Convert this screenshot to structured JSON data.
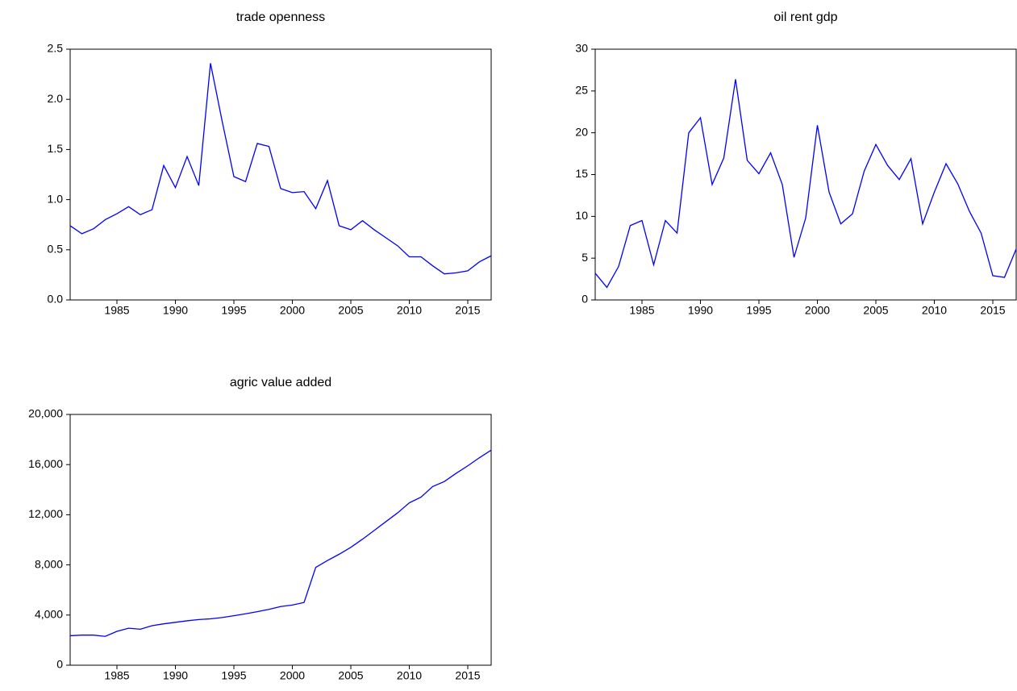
{
  "chart_data": [
    {
      "type": "line",
      "title": "trade openness",
      "color": "#0000ff",
      "x": [
        1981,
        1982,
        1983,
        1984,
        1985,
        1986,
        1987,
        1988,
        1989,
        1990,
        1991,
        1992,
        1993,
        1994,
        1995,
        1996,
        1997,
        1998,
        1999,
        2000,
        2001,
        2002,
        2003,
        2004,
        2005,
        2006,
        2007,
        2008,
        2009,
        2010,
        2011,
        2012,
        2013,
        2014,
        2015,
        2016,
        2017
      ],
      "values": [
        0.74,
        0.66,
        0.71,
        0.8,
        0.86,
        0.93,
        0.85,
        0.9,
        1.34,
        1.12,
        1.43,
        1.14,
        2.36,
        1.78,
        1.23,
        1.18,
        1.56,
        1.53,
        1.11,
        1.07,
        1.08,
        0.91,
        1.19,
        0.74,
        0.7,
        0.79,
        0.7,
        0.62,
        0.54,
        0.43,
        0.43,
        0.34,
        0.26,
        0.27,
        0.29,
        0.38,
        0.44
      ],
      "xlim": [
        1981,
        2017
      ],
      "xticks": [
        1985,
        1990,
        1995,
        2000,
        2005,
        2010,
        2015
      ],
      "ylim": [
        0,
        2.5
      ],
      "yticks": [
        {
          "value": 0,
          "label": "0.0"
        },
        0.5,
        {
          "value": 1,
          "label": "1.0"
        },
        1.5,
        {
          "value": 2,
          "label": "2.0"
        },
        2.5
      ]
    },
    {
      "type": "line",
      "title": "oil rent gdp",
      "color": "#0000ff",
      "x": [
        1981,
        1982,
        1983,
        1984,
        1985,
        1986,
        1987,
        1988,
        1989,
        1990,
        1991,
        1992,
        1993,
        1994,
        1995,
        1996,
        1997,
        1998,
        1999,
        2000,
        2001,
        2002,
        2003,
        2004,
        2005,
        2006,
        2007,
        2008,
        2009,
        2010,
        2011,
        2012,
        2013,
        2014,
        2015,
        2016,
        2017
      ],
      "values": [
        3.2,
        1.5,
        4.0,
        8.9,
        9.5,
        4.2,
        9.5,
        8.0,
        20.0,
        21.8,
        13.8,
        17.0,
        26.4,
        16.7,
        15.1,
        17.6,
        13.8,
        5.1,
        9.8,
        20.9,
        12.9,
        9.1,
        10.3,
        15.4,
        18.6,
        16.1,
        14.4,
        16.9,
        9.1,
        12.9,
        16.3,
        13.9,
        10.6,
        8.0,
        2.9,
        2.7,
        6.1
      ],
      "xlim": [
        1981,
        2017
      ],
      "xticks": [
        1985,
        1990,
        1995,
        2000,
        2005,
        2010,
        2015
      ],
      "ylim": [
        0,
        30
      ],
      "yticks": [
        0,
        5,
        10,
        15,
        20,
        25,
        30
      ]
    },
    {
      "type": "line",
      "title": "agric value added",
      "color": "#0000ff",
      "x": [
        1981,
        1982,
        1983,
        1984,
        1985,
        1986,
        1987,
        1988,
        1989,
        1990,
        1991,
        1992,
        1993,
        1994,
        1995,
        1996,
        1997,
        1998,
        1999,
        2000,
        2001,
        2002,
        2003,
        2004,
        2005,
        2006,
        2007,
        2008,
        2009,
        2010,
        2011,
        2012,
        2013,
        2014,
        2015,
        2016,
        2017
      ],
      "values": [
        2350,
        2400,
        2400,
        2300,
        2700,
        2950,
        2870,
        3150,
        3300,
        3420,
        3540,
        3640,
        3700,
        3800,
        3950,
        4100,
        4270,
        4450,
        4680,
        4800,
        5000,
        7800,
        8350,
        8850,
        9400,
        10050,
        10750,
        11450,
        12150,
        12950,
        13400,
        14250,
        14650,
        15300,
        15900,
        16550,
        17150
      ],
      "xlim": [
        1981,
        2017
      ],
      "xticks": [
        1985,
        1990,
        1995,
        2000,
        2005,
        2010,
        2015
      ],
      "ylim": [
        0,
        20000
      ],
      "yticks": [
        0,
        {
          "value": 4000,
          "label": "4,000"
        },
        {
          "value": 8000,
          "label": "8,000"
        },
        {
          "value": 12000,
          "label": "12,000"
        },
        {
          "value": 16000,
          "label": "16,000"
        },
        {
          "value": 20000,
          "label": "20,000"
        }
      ]
    }
  ]
}
